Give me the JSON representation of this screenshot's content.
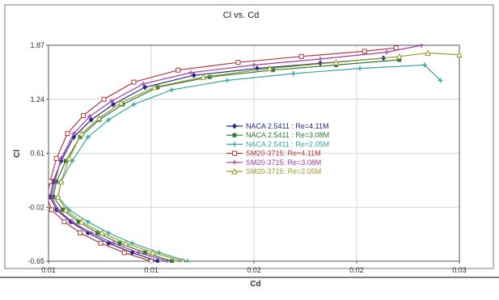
{
  "chart_data": {
    "type": "line",
    "title": "Cl vs. Cd",
    "xlabel": "Cd",
    "ylabel": "Cl",
    "xlim": [
      0.008,
      0.034
    ],
    "ylim": [
      -0.65,
      1.87
    ],
    "x_tick_labels": [
      "0.01",
      "0.01",
      "0.02",
      "0.02",
      "0.03"
    ],
    "y_tick_labels": [
      "1.87",
      "1.24",
      "0.61",
      "-0.02",
      "-0.65"
    ],
    "y_ticks": [
      1.87,
      1.24,
      0.61,
      -0.02,
      -0.65
    ],
    "grid": true,
    "legend_position": "center",
    "series": [
      {
        "name": "NACA 2.5411 : Re=4.11M",
        "color": "#1f2a8c",
        "marker": "diamond-filled",
        "x": [
          0.0149,
          0.0133,
          0.0118,
          0.0105,
          0.0094,
          0.0085,
          0.0081,
          0.0083,
          0.0088,
          0.0096,
          0.0107,
          0.0121,
          0.0141,
          0.0172,
          0.0212,
          0.0252,
          0.0292
        ],
        "y": [
          -0.65,
          -0.55,
          -0.44,
          -0.32,
          -0.19,
          -0.05,
          0.1,
          0.28,
          0.52,
          0.8,
          1.0,
          1.18,
          1.38,
          1.52,
          1.6,
          1.66,
          1.72
        ]
      },
      {
        "name": "NACA 2.5411 : Re=3.08M",
        "color": "#2e7d32",
        "marker": "square-filled",
        "x": [
          0.0158,
          0.0141,
          0.0125,
          0.0111,
          0.0099,
          0.0089,
          0.0083,
          0.0085,
          0.0091,
          0.01,
          0.0112,
          0.0127,
          0.0149,
          0.0182,
          0.0222,
          0.0262,
          0.0302
        ],
        "y": [
          -0.65,
          -0.55,
          -0.44,
          -0.32,
          -0.19,
          -0.05,
          0.1,
          0.28,
          0.52,
          0.8,
          1.0,
          1.18,
          1.38,
          1.5,
          1.58,
          1.64,
          1.7
        ]
      },
      {
        "name": "NACA 2.5411 : Re=2.05M",
        "color": "#3aa6a0",
        "marker": "cross",
        "x": [
          0.0168,
          0.015,
          0.0133,
          0.0118,
          0.0105,
          0.0093,
          0.0086,
          0.0088,
          0.0095,
          0.0105,
          0.0118,
          0.0134,
          0.0158,
          0.0193,
          0.0235,
          0.0277,
          0.0318,
          0.0328
        ],
        "y": [
          -0.65,
          -0.55,
          -0.44,
          -0.32,
          -0.19,
          -0.05,
          0.1,
          0.28,
          0.52,
          0.8,
          1.0,
          1.18,
          1.35,
          1.46,
          1.54,
          1.6,
          1.64,
          1.46
        ]
      },
      {
        "name": "SM20-3715: Re=4.11M",
        "color": "#b23a3a",
        "marker": "square-open",
        "x": [
          0.0145,
          0.0128,
          0.0113,
          0.01,
          0.009,
          0.0082,
          0.0079,
          0.0081,
          0.0085,
          0.0092,
          0.0102,
          0.0115,
          0.0134,
          0.0162,
          0.02,
          0.024,
          0.028,
          0.03
        ],
        "y": [
          -0.65,
          -0.55,
          -0.44,
          -0.32,
          -0.19,
          -0.05,
          0.1,
          0.28,
          0.55,
          0.84,
          1.05,
          1.24,
          1.44,
          1.58,
          1.67,
          1.74,
          1.8,
          1.84
        ]
      },
      {
        "name": "SM20-3715: Re=3.08M",
        "color": "#a23aa6",
        "marker": "cross-open",
        "x": [
          0.0155,
          0.0137,
          0.0121,
          0.0107,
          0.0095,
          0.0086,
          0.0082,
          0.0084,
          0.0088,
          0.0096,
          0.0106,
          0.012,
          0.014,
          0.017,
          0.021,
          0.0252,
          0.0294,
          0.0316
        ],
        "y": [
          -0.65,
          -0.55,
          -0.44,
          -0.32,
          -0.19,
          -0.05,
          0.1,
          0.28,
          0.55,
          0.84,
          1.04,
          1.22,
          1.42,
          1.55,
          1.64,
          1.71,
          1.79,
          1.87
        ]
      },
      {
        "name": "SM20-3715: Re=2.05M",
        "color": "#9a9a2a",
        "marker": "triangle-open",
        "x": [
          0.0165,
          0.0146,
          0.0129,
          0.0114,
          0.0101,
          0.0091,
          0.0086,
          0.0088,
          0.0093,
          0.0101,
          0.0112,
          0.0126,
          0.0147,
          0.0178,
          0.022,
          0.0262,
          0.0302,
          0.032,
          0.034
        ],
        "y": [
          -0.65,
          -0.55,
          -0.44,
          -0.32,
          -0.19,
          -0.05,
          0.1,
          0.28,
          0.55,
          0.84,
          1.02,
          1.2,
          1.38,
          1.5,
          1.6,
          1.67,
          1.74,
          1.78,
          1.76
        ]
      }
    ]
  }
}
